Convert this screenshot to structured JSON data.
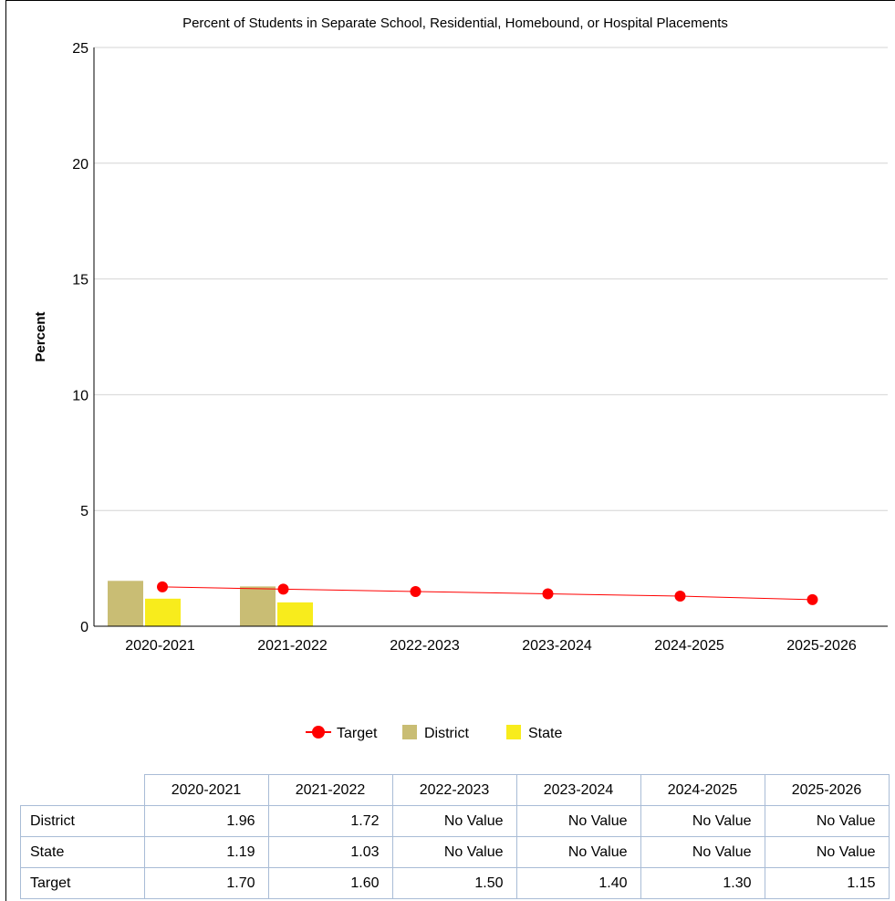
{
  "chart_data": {
    "type": "bar",
    "title": "Percent of Students in Separate School, Residential, Homebound, or Hospital Placements",
    "ylabel": "Percent",
    "xlabel": "",
    "ylim": [
      0,
      25
    ],
    "yticks": [
      0,
      5,
      10,
      15,
      20,
      25
    ],
    "categories": [
      "2020-2021",
      "2021-2022",
      "2022-2023",
      "2023-2024",
      "2024-2025",
      "2025-2026"
    ],
    "series": [
      {
        "name": "District",
        "kind": "bar",
        "color": "#c9bd74",
        "values": [
          1.96,
          1.72,
          null,
          null,
          null,
          null
        ]
      },
      {
        "name": "State",
        "kind": "bar",
        "color": "#f8ec1c",
        "values": [
          1.19,
          1.03,
          null,
          null,
          null,
          null
        ]
      },
      {
        "name": "Target",
        "kind": "line",
        "color": "#ff0000",
        "values": [
          1.7,
          1.6,
          1.5,
          1.4,
          1.3,
          1.15
        ]
      }
    ],
    "legend": [
      "Target",
      "District",
      "State"
    ],
    "legend_position": "bottom",
    "grid": true
  },
  "table": {
    "columns": [
      "2020-2021",
      "2021-2022",
      "2022-2023",
      "2023-2024",
      "2024-2025",
      "2025-2026"
    ],
    "rows": [
      {
        "label": "District",
        "cells": [
          "1.96",
          "1.72",
          "No Value",
          "No Value",
          "No Value",
          "No Value"
        ]
      },
      {
        "label": "State",
        "cells": [
          "1.19",
          "1.03",
          "No Value",
          "No Value",
          "No Value",
          "No Value"
        ]
      },
      {
        "label": "Target",
        "cells": [
          "1.70",
          "1.60",
          "1.50",
          "1.40",
          "1.30",
          "1.15"
        ]
      }
    ]
  }
}
